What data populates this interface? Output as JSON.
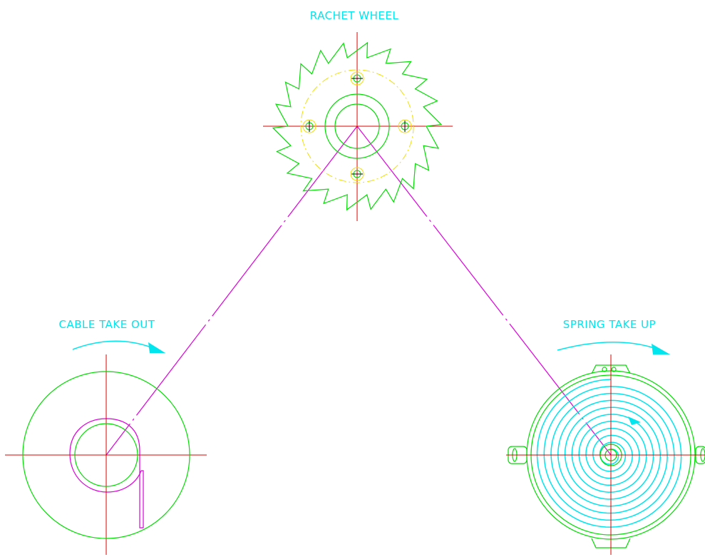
{
  "labels": {
    "ratchet": "RACHET WHEEL",
    "cable": "CABLE TAKE OUT",
    "spring": "SPRING TAKE UP"
  },
  "colors": {
    "background": "#ffffff",
    "geometry": "#00dd00",
    "centerline": "#dd0000",
    "hidden_circle": "#f0e000",
    "spring_coil": "#00e5ee",
    "label": "#00e5ee",
    "belt": "#dd00dd",
    "bolt": "#000000"
  },
  "ratchet_wheel": {
    "tooth_count": 22
  },
  "spring_take_up": {
    "coil_turns": 10
  }
}
